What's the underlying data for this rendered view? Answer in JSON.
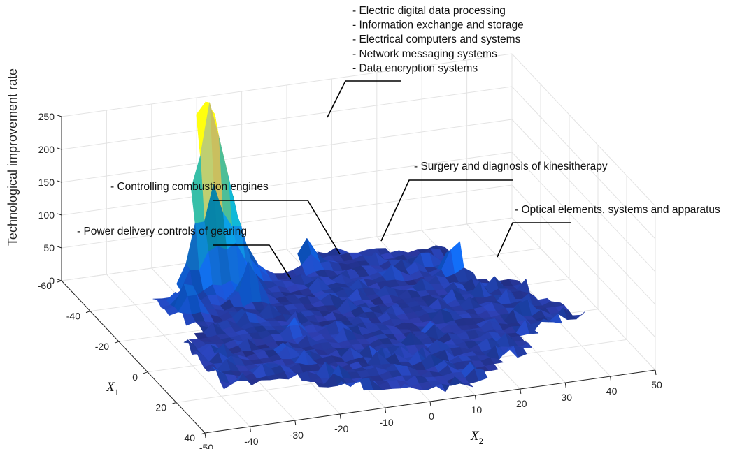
{
  "chart_data": {
    "type": "surface",
    "title": "",
    "zlabel": "Technological improvement rate",
    "xlabel": {
      "var": "X",
      "sub": "1"
    },
    "ylabel": {
      "var": "X",
      "sub": "2"
    },
    "x1_ticks": [
      "-60",
      "-40",
      "-20",
      "0",
      "20",
      "40"
    ],
    "x2_ticks": [
      "-50",
      "-40",
      "-30",
      "-20",
      "-10",
      "0",
      "10",
      "20",
      "30",
      "40",
      "50"
    ],
    "z_ticks": [
      "0",
      "50",
      "100",
      "150",
      "200",
      "250"
    ],
    "x1_range": [
      -60,
      40
    ],
    "x2_range": [
      -50,
      50
    ],
    "zlim": [
      0,
      250
    ],
    "grid": true,
    "colormap": "parula",
    "peaks": [
      {
        "x1": -45,
        "x2": -22,
        "z": 225,
        "label_lines": [
          "- Electric digital data processing",
          "- Information exchange and storage",
          "- Electrical computers and systems",
          "- Network messaging systems",
          "- Data encryption systems"
        ]
      },
      {
        "x1": -30,
        "x2": -18,
        "z": 75,
        "label_lines": [
          "- Controlling combustion engines"
        ]
      },
      {
        "x1": -28,
        "x2": -32,
        "z": 60,
        "label_lines": [
          "- Power delivery controls of gearing"
        ]
      },
      {
        "x1": -45,
        "x2": 0,
        "z": 45,
        "label_lines": [
          "- Surgery and diagnosis of kinesitherapy"
        ]
      },
      {
        "x1": -30,
        "x2": 28,
        "z": 60,
        "label_lines": [
          "- Optical elements, systems and apparatus"
        ]
      }
    ]
  }
}
